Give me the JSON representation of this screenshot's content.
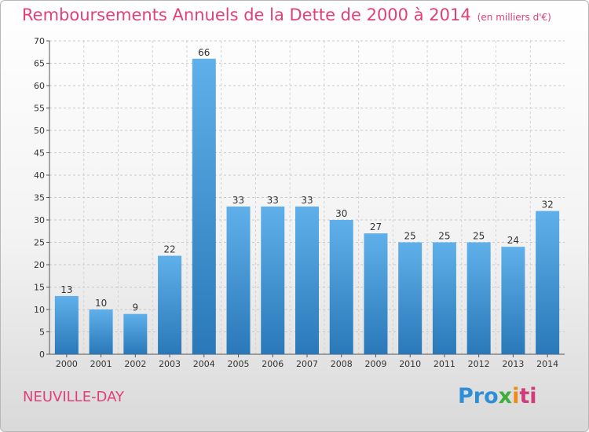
{
  "title": "Remboursements Annuels de la Dette de 2000 à 2014",
  "subtitle": "(en milliers d'€)",
  "city": "NEUVILLE-DAY",
  "logo": {
    "p1": "Pro",
    "p2": "x",
    "p3": "i",
    "p4": "ti"
  },
  "colors": {
    "bar_top": "#5fb0ea",
    "bar_bottom": "#2a78b8",
    "title": "#e0407a"
  },
  "chart_data": {
    "type": "bar",
    "title": "Remboursements Annuels de la Dette de 2000 à 2014",
    "subtitle": "(en milliers d'€)",
    "categories": [
      "2000",
      "2001",
      "2002",
      "2003",
      "2004",
      "2005",
      "2006",
      "2007",
      "2008",
      "2009",
      "2010",
      "2011",
      "2012",
      "2013",
      "2014"
    ],
    "values": [
      13,
      10,
      9,
      22,
      66,
      33,
      33,
      33,
      30,
      27,
      25,
      25,
      25,
      24,
      32
    ],
    "ylim": [
      0,
      70
    ],
    "yticks": [
      0,
      5,
      10,
      15,
      20,
      25,
      30,
      35,
      40,
      45,
      50,
      55,
      60,
      65,
      70
    ],
    "grid": true
  }
}
